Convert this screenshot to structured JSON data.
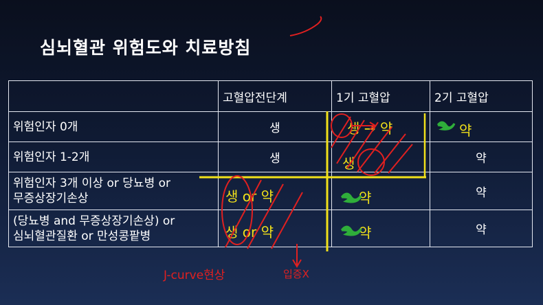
{
  "slide": {
    "title": "심뇌혈관 위험도와 치료방침"
  },
  "table": {
    "headers": [
      "",
      "고혈압전단계",
      "1기 고혈압",
      "2기 고혈압"
    ],
    "rows": [
      {
        "label_lines": [
          "위험인자 0개"
        ],
        "cells": [
          "생",
          "생 → 약",
          "약"
        ]
      },
      {
        "label_lines": [
          "위험인자 1-2개"
        ],
        "cells": [
          "생",
          "생",
          "약"
        ]
      },
      {
        "label_lines": [
          "위험인자 3개 이상 or 당뇨병 or",
          "무증상장기손상"
        ],
        "cells": [
          "생 or 약",
          "약",
          "약"
        ]
      },
      {
        "label_lines": [
          "(당뇨병 and 무증상장기손상) or",
          "심뇌혈관질환 or 만성콩팥병"
        ],
        "cells": [
          "생 or 약",
          "약",
          "약"
        ]
      }
    ]
  },
  "annotations": {
    "j_curve": "J-curve현상",
    "no_hypotension": "입증X"
  },
  "colors": {
    "annotation_yellow": "#f2e11a",
    "annotation_red": "#e02020",
    "annotation_green": "#2fae3a"
  }
}
